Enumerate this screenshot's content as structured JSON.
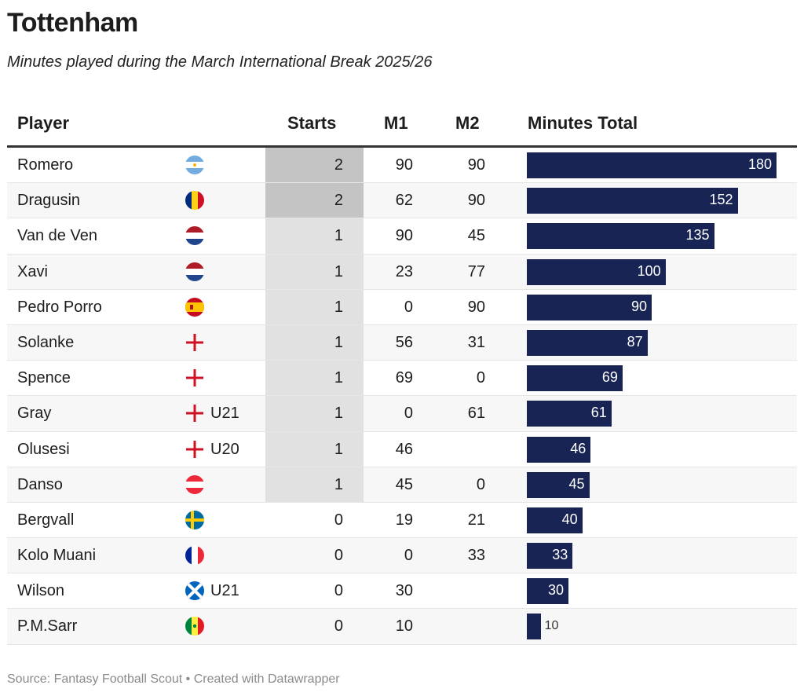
{
  "title": "Tottenham",
  "subtitle": "Minutes played during the March International Break 2025/26",
  "columns": {
    "player": "Player",
    "starts": "Starts",
    "m1": "M1",
    "m2": "M2",
    "total": "Minutes Total"
  },
  "colors": {
    "bar": "#172454",
    "starts_2": "#c4c4c4",
    "starts_1": "#e1e1e1",
    "starts_0": "transparent",
    "stripe": "#f7f7f7"
  },
  "bar_max": 180,
  "rows": [
    {
      "player": "Romero",
      "flag": "argentina",
      "tag": "",
      "starts": "2",
      "m1": "90",
      "m2": "90",
      "total": 180
    },
    {
      "player": "Dragusin",
      "flag": "romania",
      "tag": "",
      "starts": "2",
      "m1": "62",
      "m2": "90",
      "total": 152
    },
    {
      "player": "Van de Ven",
      "flag": "netherlands",
      "tag": "",
      "starts": "1",
      "m1": "90",
      "m2": "45",
      "total": 135
    },
    {
      "player": "Xavi",
      "flag": "netherlands",
      "tag": "",
      "starts": "1",
      "m1": "23",
      "m2": "77",
      "total": 100
    },
    {
      "player": "Pedro Porro",
      "flag": "spain",
      "tag": "",
      "starts": "1",
      "m1": "0",
      "m2": "90",
      "total": 90
    },
    {
      "player": "Solanke",
      "flag": "england",
      "tag": "",
      "starts": "1",
      "m1": "56",
      "m2": "31",
      "total": 87
    },
    {
      "player": "Spence",
      "flag": "england",
      "tag": "",
      "starts": "1",
      "m1": "69",
      "m2": "0",
      "total": 69
    },
    {
      "player": "Gray",
      "flag": "england",
      "tag": "U21",
      "starts": "1",
      "m1": "0",
      "m2": "61",
      "total": 61
    },
    {
      "player": "Olusesi",
      "flag": "england",
      "tag": "U20",
      "starts": "1",
      "m1": "46",
      "m2": "",
      "total": 46
    },
    {
      "player": "Danso",
      "flag": "austria",
      "tag": "",
      "starts": "1",
      "m1": "45",
      "m2": "0",
      "total": 45
    },
    {
      "player": "Bergvall",
      "flag": "sweden",
      "tag": "",
      "starts": "0",
      "m1": "19",
      "m2": "21",
      "total": 40
    },
    {
      "player": "Kolo Muani",
      "flag": "france",
      "tag": "",
      "starts": "0",
      "m1": "0",
      "m2": "33",
      "total": 33
    },
    {
      "player": "Wilson",
      "flag": "scotland",
      "tag": "U21",
      "starts": "0",
      "m1": "30",
      "m2": "",
      "total": 30
    },
    {
      "player": "P.M.Sarr",
      "flag": "senegal",
      "tag": "",
      "starts": "0",
      "m1": "10",
      "m2": "",
      "total": 10
    }
  ],
  "source": "Source: Fantasy Football Scout • Created with Datawrapper"
}
